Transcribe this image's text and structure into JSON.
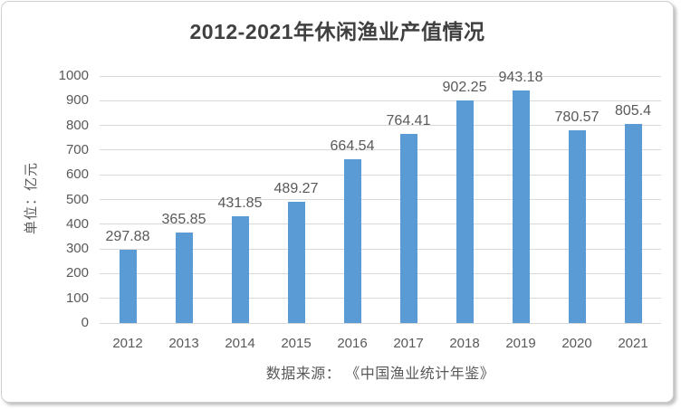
{
  "chart_data": {
    "type": "bar",
    "title": "2012-2021年休闲渔业产值情况",
    "ylabel": "单位：亿元",
    "xlabel": "",
    "categories": [
      "2012",
      "2013",
      "2014",
      "2015",
      "2016",
      "2017",
      "2018",
      "2019",
      "2020",
      "2021"
    ],
    "values": [
      297.88,
      365.85,
      431.85,
      489.27,
      664.54,
      764.41,
      902.25,
      943.18,
      780.57,
      805.4
    ],
    "value_labels": [
      "297.88",
      "365.85",
      "431.85",
      "489.27",
      "664.54",
      "764.41",
      "902.25",
      "943.18",
      "780.57",
      "805.4"
    ],
    "ylim": [
      0,
      1000
    ],
    "ytick_step": 100,
    "ytick_labels": [
      "0",
      "100",
      "200",
      "300",
      "400",
      "500",
      "600",
      "700",
      "800",
      "900",
      "1000"
    ],
    "grid": true,
    "legend": "none",
    "source_note": "数据来源： 《中国渔业统计年鉴》",
    "colors": {
      "bar": "#5b9bd5",
      "gridline": "#d9d9d9",
      "title_text": "#404040",
      "axis_text": "#595959",
      "card_background": "#ffffff"
    }
  }
}
